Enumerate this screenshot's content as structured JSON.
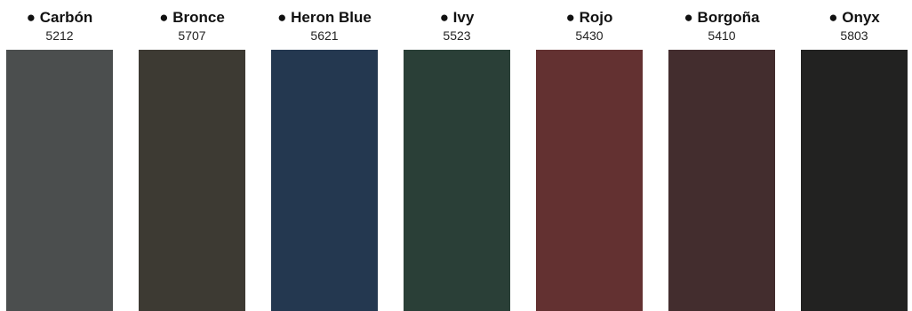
{
  "swatches": [
    {
      "name": "● Carbón",
      "code": "5212",
      "color": "#4b4e4e"
    },
    {
      "name": "● Bronce",
      "code": "5707",
      "color": "#3d3a33"
    },
    {
      "name": "● Heron Blue",
      "code": "5621",
      "color": "#243850"
    },
    {
      "name": "● Ivy",
      "code": "5523",
      "color": "#2a3f37"
    },
    {
      "name": "● Rojo",
      "code": "5430",
      "color": "#633131"
    },
    {
      "name": "● Borgoña",
      "code": "5410",
      "color": "#432d2e"
    },
    {
      "name": "● Onyx",
      "code": "5803",
      "color": "#222221"
    }
  ]
}
